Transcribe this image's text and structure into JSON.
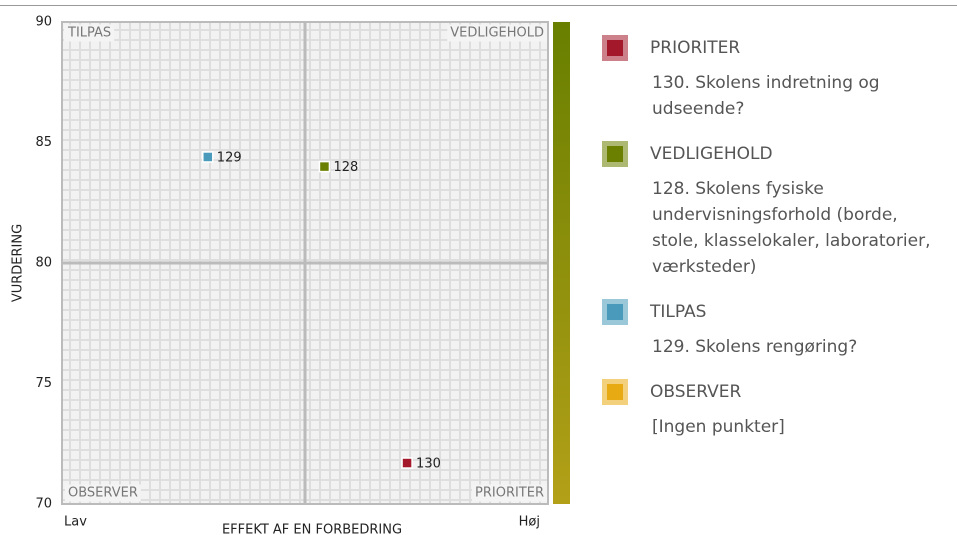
{
  "chart_data": {
    "type": "scatter",
    "xlabel": "EFFEKT AF EN FORBEDRING",
    "ylabel": "VURDERING",
    "xlim": [
      0,
      100
    ],
    "xticks": [
      {
        "value": 0,
        "label": "Lav"
      },
      {
        "value": 100,
        "label": "Høj"
      }
    ],
    "ylim": [
      70,
      90
    ],
    "yticks": [
      70,
      75,
      80,
      85,
      90
    ],
    "quadrant_labels": {
      "top_left": "TILPAS",
      "top_right": "VEDLIGEHOLD",
      "bottom_left": "OBSERVER",
      "bottom_right": "PRIORITER"
    },
    "series": [
      {
        "name": "PRIORITER",
        "color": "#a3192b",
        "description": [
          "130. Skolens indretning og udseende?"
        ],
        "x": [
          71
        ],
        "values": [
          71.7
        ],
        "labels": [
          "130"
        ]
      },
      {
        "name": "VEDLIGEHOLD",
        "color": "#6b8000",
        "description": [
          "128. Skolens fysiske undervisningsforhold (borde, stole, klasselokaler, laboratorier, værksteder)"
        ],
        "x": [
          54
        ],
        "values": [
          84.0
        ],
        "labels": [
          "128"
        ]
      },
      {
        "name": "TILPAS",
        "color": "#4a9bbb",
        "description": [
          "129. Skolens rengøring?"
        ],
        "x": [
          30
        ],
        "values": [
          84.4
        ],
        "labels": [
          "129"
        ]
      },
      {
        "name": "OBSERVER",
        "color": "#e8aa12",
        "description": [
          "[Ingen punkter]"
        ],
        "x": [],
        "values": [],
        "labels": []
      }
    ]
  }
}
